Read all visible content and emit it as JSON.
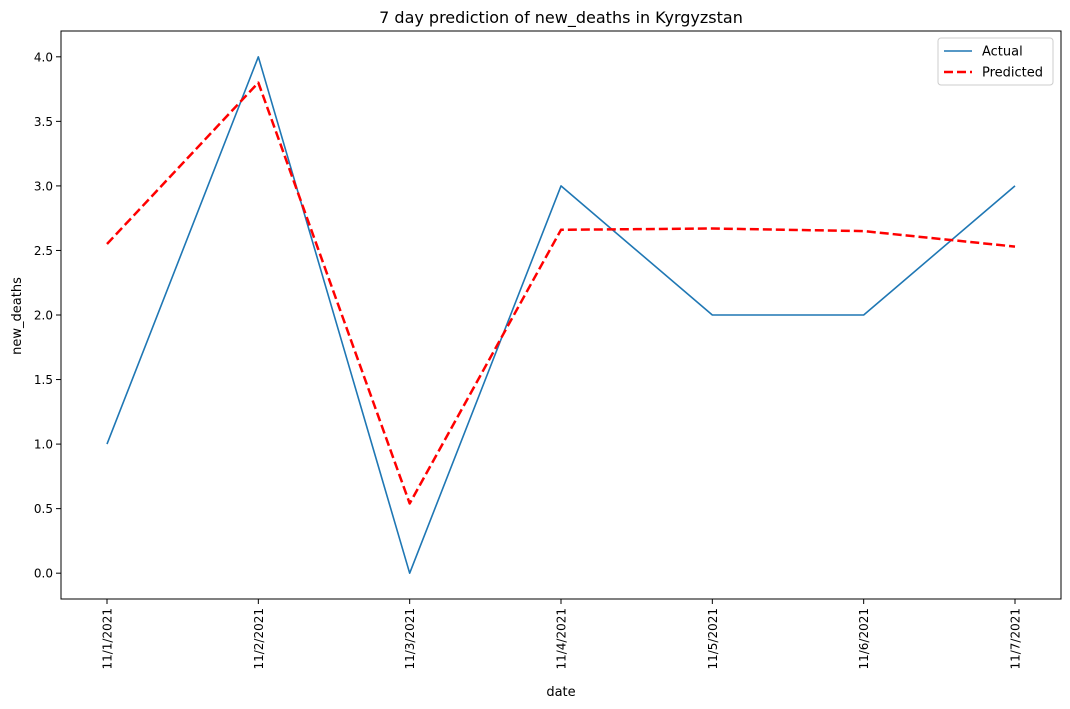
{
  "chart_data": {
    "type": "line",
    "title": "7 day prediction of new_deaths in Kyrgyzstan",
    "xlabel": "date",
    "ylabel": "new_deaths",
    "categories": [
      "11/1/2021",
      "11/2/2021",
      "11/3/2021",
      "11/4/2021",
      "11/5/2021",
      "11/6/2021",
      "11/7/2021"
    ],
    "ylim": [
      -0.2,
      4.2
    ],
    "yticks": [
      "0.0",
      "0.5",
      "1.0",
      "1.5",
      "2.0",
      "2.5",
      "3.0",
      "3.5",
      "4.0"
    ],
    "grid": false,
    "legend_position": "top-right",
    "series": [
      {
        "name": "Actual",
        "values": [
          1.0,
          4.0,
          0.0,
          3.0,
          2.0,
          2.0,
          3.0
        ],
        "color": "#1f77b4",
        "style": "solid"
      },
      {
        "name": "Predicted",
        "values": [
          2.55,
          3.8,
          0.54,
          2.66,
          2.67,
          2.65,
          2.53
        ],
        "color": "#ff0000",
        "style": "dashed"
      }
    ]
  }
}
